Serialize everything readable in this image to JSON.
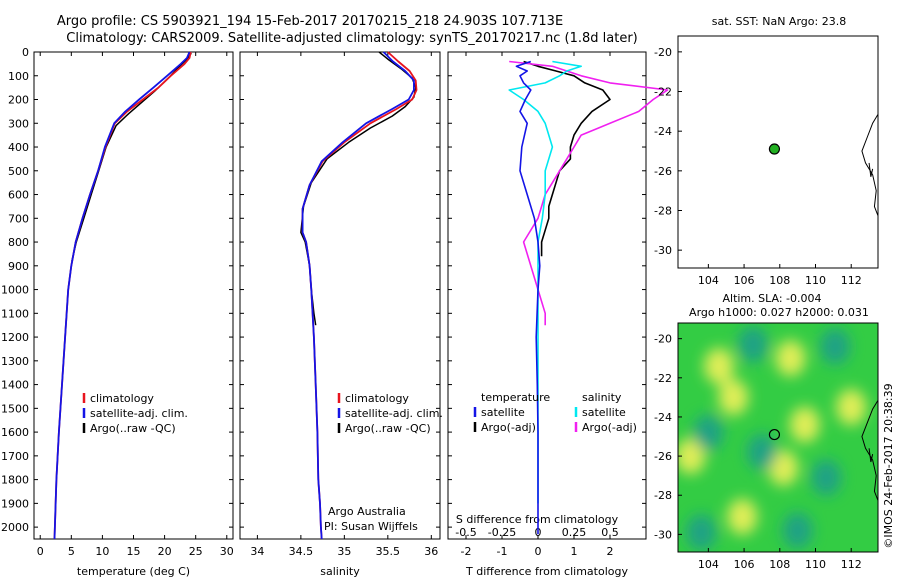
{
  "title": {
    "line1": "Argo profile: CS 5903921_194 15-Feb-2017 20170215_218 24.903S 107.713E",
    "line2": "Climatology: CARS2009. Satellite-adjusted climatology: synTS_20170217.nc (1.8d later)"
  },
  "depth_ticks": [
    "0",
    "100",
    "200",
    "300",
    "400",
    "500",
    "600",
    "700",
    "800",
    "900",
    "1000",
    "1100",
    "1200",
    "1300",
    "1400",
    "1500",
    "1600",
    "1700",
    "1800",
    "1900",
    "2000"
  ],
  "colors": {
    "climatology": "#e8141e",
    "satellite": "#1414e6",
    "argo": "#000000",
    "satellite_salinity": "#00e8f0",
    "argo_salinity": "#f020f0",
    "marker": "#22b022",
    "map_green": "#33cc44",
    "map_yellow": "#e8ef5a",
    "map_teal": "#1aa088"
  },
  "chart_data": [
    {
      "type": "line",
      "panel": "temperature",
      "xlabel": "temperature (deg C)",
      "ylabel": "",
      "xlim": [
        -1,
        31
      ],
      "ylim": [
        2050,
        0
      ],
      "xticks": [
        "0",
        "5",
        "10",
        "15",
        "20",
        "25",
        "30"
      ],
      "legend": [
        "climatology",
        "satellite-adj. clim.",
        "Argo(..raw -QC)"
      ],
      "series": [
        {
          "name": "climatology",
          "x": [
            24.2,
            24.0,
            23.2,
            21.0,
            19.0,
            16.5,
            14.0,
            12.0,
            10.5,
            9.3,
            8.0,
            6.8,
            5.7,
            5.0,
            4.5,
            4.0,
            3.5,
            3.0,
            2.6,
            2.3
          ],
          "y": [
            0,
            25,
            50,
            100,
            150,
            200,
            250,
            300,
            400,
            500,
            600,
            700,
            800,
            900,
            1000,
            1200,
            1400,
            1600,
            1800,
            2050
          ]
        },
        {
          "name": "satellite-adj. clim.",
          "x": [
            24.0,
            23.6,
            22.6,
            20.4,
            18.2,
            15.9,
            13.7,
            11.9,
            10.4,
            9.3,
            8.0,
            6.8,
            5.7,
            5.0,
            4.5,
            4.0,
            3.5,
            3.0,
            2.6,
            2.3
          ],
          "y": [
            0,
            25,
            50,
            100,
            150,
            200,
            250,
            300,
            400,
            500,
            600,
            700,
            800,
            900,
            1000,
            1200,
            1400,
            1600,
            1800,
            2050
          ]
        },
        {
          "name": "Argo(..raw -QC)",
          "x": [
            24.3,
            23.6,
            22.4,
            20.6,
            18.6,
            16.4,
            14.2,
            12.2,
            10.6,
            9.4,
            8.2,
            7.0,
            5.8,
            5.1
          ],
          "y": [
            5,
            30,
            60,
            110,
            160,
            210,
            260,
            310,
            400,
            500,
            600,
            700,
            800,
            880
          ]
        }
      ],
      "annotations": []
    },
    {
      "type": "line",
      "panel": "salinity",
      "xlabel": "salinity",
      "ylabel": "",
      "xlim": [
        33.8,
        36.1
      ],
      "ylim": [
        2050,
        0
      ],
      "xticks": [
        "34",
        "34.5",
        "35",
        "35.5",
        "36"
      ],
      "legend": [
        "climatology",
        "satellite-adj. clim.",
        "Argo(..raw -QC)"
      ],
      "series": [
        {
          "name": "climatology",
          "x": [
            35.5,
            35.62,
            35.75,
            35.82,
            35.83,
            35.78,
            35.6,
            35.3,
            35.0,
            34.75,
            34.6,
            34.52,
            34.52,
            34.56,
            34.6,
            34.62,
            34.65,
            34.67,
            34.69,
            34.7,
            34.72,
            34.73,
            34.74
          ],
          "y": [
            0,
            40,
            80,
            120,
            160,
            200,
            240,
            300,
            380,
            460,
            560,
            660,
            760,
            800,
            900,
            1000,
            1200,
            1400,
            1600,
            1800,
            1900,
            2000,
            2050
          ]
        },
        {
          "name": "satellite-adj. clim.",
          "x": [
            35.45,
            35.56,
            35.7,
            35.8,
            35.8,
            35.74,
            35.55,
            35.25,
            34.98,
            34.74,
            34.6,
            34.52,
            34.52,
            34.56,
            34.6,
            34.62,
            34.65,
            34.67,
            34.69,
            34.7,
            34.72,
            34.73,
            34.74
          ],
          "y": [
            0,
            40,
            80,
            120,
            160,
            200,
            240,
            300,
            380,
            460,
            560,
            660,
            760,
            800,
            900,
            1000,
            1200,
            1400,
            1600,
            1800,
            1900,
            2000,
            2050
          ]
        },
        {
          "name": "Argo(..raw -QC)",
          "x": [
            35.4,
            35.5,
            35.65,
            35.78,
            35.82,
            35.8,
            35.7,
            35.55,
            35.3,
            35.05,
            34.8,
            34.62,
            34.53,
            34.5,
            34.55,
            34.6,
            34.62,
            34.65,
            34.67
          ],
          "y": [
            0,
            30,
            70,
            110,
            150,
            190,
            230,
            270,
            320,
            380,
            450,
            550,
            650,
            760,
            800,
            900,
            1000,
            1100,
            1150
          ]
        }
      ],
      "annotations": [
        "Argo Australia",
        "PI: Susan Wijffels"
      ]
    },
    {
      "type": "line",
      "panel": "difference",
      "xlabel": "T difference from climatology",
      "xlabel_top": "S difference from climatology",
      "ylabel": "",
      "xlim": [
        -2.5,
        3.0
      ],
      "ylim": [
        2050,
        0
      ],
      "xticks": [
        "-2",
        "-1",
        "0",
        "1",
        "2"
      ],
      "top_xticks": [
        "-0.5",
        "-0.25",
        "0",
        "0.25",
        "0.5"
      ],
      "legend_temperature_title": "temperature",
      "legend_salinity_title": "salinity",
      "legend": [
        "satellite",
        "Argo(-adj)",
        "satellite",
        "Argo(-adj)"
      ],
      "series": [
        {
          "name": "satellite",
          "quantity": "temperature",
          "x": [
            -0.2,
            -0.6,
            -0.3,
            -0.5,
            -0.4,
            -0.2,
            -0.35,
            -0.5,
            -0.3,
            -0.45,
            -0.5,
            -0.3,
            -0.1,
            -0.05,
            0.0,
            0.05,
            0.0,
            -0.05,
            -0.02,
            0.0,
            0.0,
            0.0,
            0.0,
            0.0
          ],
          "y": [
            40,
            60,
            80,
            100,
            130,
            160,
            200,
            250,
            300,
            400,
            500,
            600,
            700,
            750,
            800,
            900,
            1000,
            1200,
            1400,
            1600,
            1800,
            1900,
            2000,
            2030
          ]
        },
        {
          "name": "Argo(-adj)",
          "quantity": "temperature",
          "x": [
            -0.4,
            0.0,
            0.5,
            1.0,
            1.3,
            1.8,
            2.0,
            1.5,
            1.2,
            1.0,
            0.9,
            0.9,
            0.6,
            0.5,
            0.4,
            0.3,
            0.3,
            0.2,
            0.1,
            0.1
          ],
          "y": [
            40,
            60,
            80,
            100,
            130,
            160,
            200,
            250,
            300,
            350,
            400,
            450,
            500,
            550,
            600,
            650,
            700,
            750,
            800,
            860
          ]
        },
        {
          "name": "satellite",
          "quantity": "salinity",
          "x": [
            0.1,
            0.3,
            0.2,
            0.15,
            0.05,
            -0.2,
            -0.1,
            0.0,
            0.05,
            0.1,
            0.05,
            0.05,
            0.03,
            0.0,
            0.0,
            0.0,
            0.0,
            0.0,
            0.0,
            0.0
          ],
          "y": [
            40,
            60,
            80,
            100,
            130,
            160,
            200,
            250,
            300,
            400,
            500,
            600,
            700,
            800,
            1000,
            1200,
            1400,
            1600,
            1800,
            1900
          ]
        },
        {
          "name": "Argo(-adj)",
          "quantity": "salinity",
          "x": [
            -0.2,
            0.1,
            0.2,
            0.3,
            0.5,
            0.9,
            0.8,
            0.7,
            0.5,
            0.3,
            0.25,
            0.2,
            0.15,
            0.1,
            0.05,
            0.0,
            -0.1,
            0.0,
            0.05,
            0.05
          ],
          "y": [
            40,
            60,
            80,
            100,
            130,
            160,
            200,
            250,
            300,
            350,
            400,
            450,
            500,
            550,
            600,
            700,
            800,
            1000,
            1100,
            1150
          ]
        }
      ],
      "annotations": []
    },
    {
      "type": "scatter",
      "panel": "sst-map",
      "title": "sat. SST: NaN Argo: 23.8",
      "xlim": [
        102.3,
        113.5
      ],
      "ylim": [
        -30.9,
        -19.2
      ],
      "xticks": [
        "104",
        "106",
        "108",
        "110",
        "112"
      ],
      "yticks": [
        "-20",
        "-22",
        "-24",
        "-26",
        "-28",
        "-30"
      ],
      "points": [
        {
          "x": 107.7,
          "y": -24.9
        }
      ]
    },
    {
      "type": "heatmap",
      "panel": "altimetry-map",
      "title_line1": "Altim. SLA: -0.004",
      "title_line2": "Argo h1000: 0.027 h2000: 0.031",
      "xlim": [
        102.3,
        113.5
      ],
      "ylim": [
        -30.9,
        -19.2
      ],
      "xticks": [
        "104",
        "106",
        "108",
        "110",
        "112"
      ],
      "yticks": [
        "-20",
        "-22",
        "-24",
        "-26",
        "-28",
        "-30"
      ],
      "points": [
        {
          "x": 107.7,
          "y": -24.9
        }
      ],
      "blobs": [
        {
          "x": 105.4,
          "y": -23.0,
          "tone": "yellow"
        },
        {
          "x": 104.6,
          "y": -21.4,
          "tone": "yellow"
        },
        {
          "x": 108.6,
          "y": -21.0,
          "tone": "yellow"
        },
        {
          "x": 109.4,
          "y": -24.4,
          "tone": "yellow"
        },
        {
          "x": 108.2,
          "y": -26.6,
          "tone": "yellow"
        },
        {
          "x": 105.9,
          "y": -29.1,
          "tone": "yellow"
        },
        {
          "x": 103.0,
          "y": -26.0,
          "tone": "yellow"
        },
        {
          "x": 112.0,
          "y": -23.5,
          "tone": "yellow"
        },
        {
          "x": 106.5,
          "y": -20.3,
          "tone": "teal"
        },
        {
          "x": 111.1,
          "y": -20.4,
          "tone": "teal"
        },
        {
          "x": 107.0,
          "y": -25.8,
          "tone": "teal"
        },
        {
          "x": 104.0,
          "y": -24.8,
          "tone": "teal"
        },
        {
          "x": 110.6,
          "y": -27.1,
          "tone": "teal"
        },
        {
          "x": 103.6,
          "y": -29.9,
          "tone": "teal"
        },
        {
          "x": 109.0,
          "y": -29.8,
          "tone": "teal"
        }
      ]
    }
  ],
  "stamp": "©IMOS 24-Feb-2017 20:38:39"
}
